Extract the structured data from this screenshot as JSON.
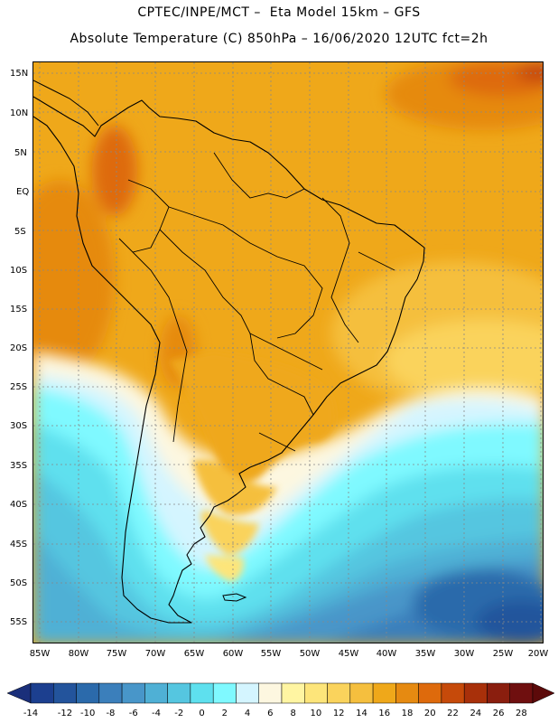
{
  "header": {
    "line1": "CPTEC/INPE/MCT –  Eta Model 15km – GFS",
    "line2": "Absolute Temperature (C) 850hPa – 16/06/2020 12UTC fct=2h"
  },
  "map": {
    "region": "South America",
    "lat_labels": [
      "15N",
      "10N",
      "5N",
      "EQ",
      "5S",
      "10S",
      "15S",
      "20S",
      "25S",
      "30S",
      "35S",
      "40S",
      "45S",
      "50S",
      "55S"
    ],
    "lon_labels": [
      "85W",
      "80W",
      "75W",
      "70W",
      "65W",
      "60W",
      "55W",
      "50W",
      "45W",
      "40W",
      "35W",
      "30W",
      "25W",
      "20W"
    ],
    "lat_range": [
      -57.5,
      16
    ],
    "lon_range": [
      -86,
      -19.5
    ]
  },
  "colorbar": {
    "ticks": [
      "-14",
      "-12",
      "-10",
      "-8",
      "-6",
      "-4",
      "-2",
      "0",
      "2",
      "4",
      "6",
      "8",
      "10",
      "12",
      "14",
      "16",
      "18",
      "20",
      "22",
      "24",
      "26",
      "28"
    ],
    "colors": [
      "#1c3f8f",
      "#23549c",
      "#2b6aab",
      "#3b7fbb",
      "#4896c9",
      "#4fb0d5",
      "#55c6e0",
      "#5ee0ee",
      "#7ff9ff",
      "#d4f5ff",
      "#fdf7e0",
      "#fff5a2",
      "#fde57a",
      "#fad35c",
      "#f5bf3e",
      "#efa81a",
      "#e68a11",
      "#de6a0c",
      "#c64a0a",
      "#a8300a",
      "#8a1e0e",
      "#6f0f0f"
    ],
    "under_color": "#1a2f7a",
    "over_color": "#5c0a0a"
  }
}
